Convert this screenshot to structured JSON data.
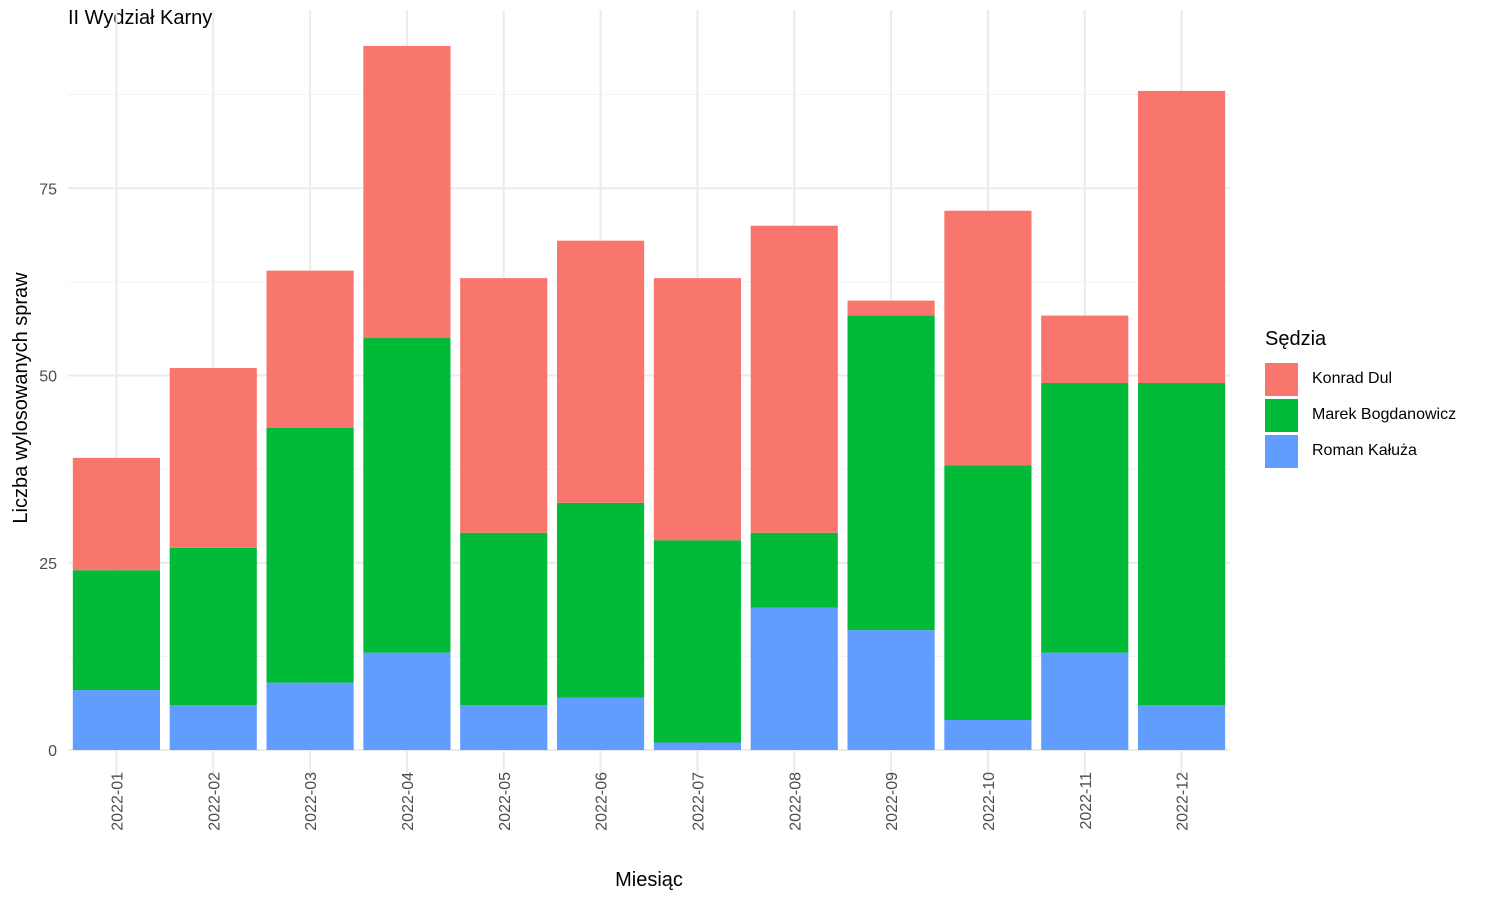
{
  "chart_data": {
    "type": "bar",
    "stacked": true,
    "title": "II Wydział Karny",
    "xlabel": "Miesiąc",
    "ylabel": "Liczba wylosowanych spraw",
    "ylim": [
      0,
      98
    ],
    "yticks": [
      0,
      25,
      50,
      75
    ],
    "grid": true,
    "legend_position": "right",
    "legend_title": "Sędzia",
    "categories": [
      "2022-01",
      "2022-02",
      "2022-03",
      "2022-04",
      "2022-05",
      "2022-06",
      "2022-07",
      "2022-08",
      "2022-09",
      "2022-10",
      "2022-11",
      "2022-12"
    ],
    "series": [
      {
        "name": "Konrad Dul",
        "color": "#F8766D",
        "values": [
          15,
          24,
          21,
          39,
          34,
          35,
          35,
          41,
          2,
          34,
          9,
          39
        ]
      },
      {
        "name": "Marek Bogdanowicz",
        "color": "#00BA38",
        "values": [
          16,
          21,
          34,
          42,
          23,
          26,
          27,
          10,
          42,
          34,
          36,
          43
        ]
      },
      {
        "name": "Roman Kałuża",
        "color": "#619CFF",
        "values": [
          8,
          6,
          9,
          13,
          6,
          7,
          1,
          19,
          16,
          4,
          13,
          6
        ]
      }
    ]
  }
}
